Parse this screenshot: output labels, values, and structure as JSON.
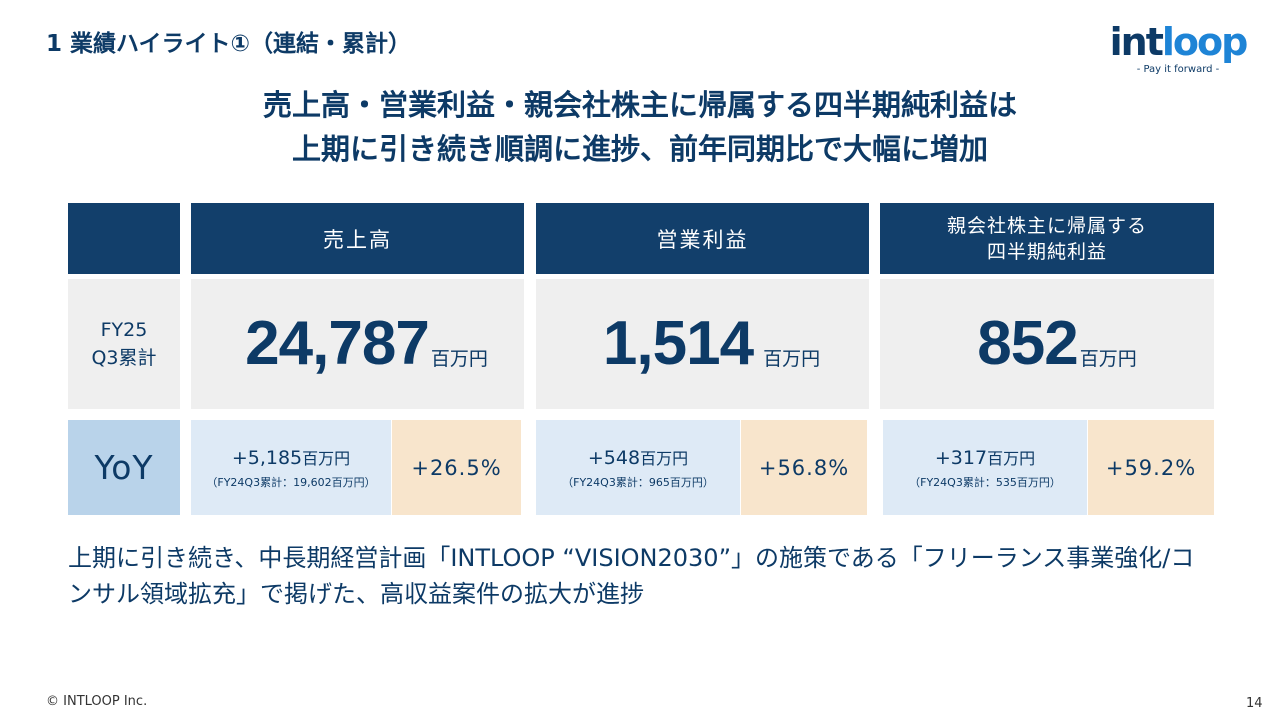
{
  "section_title": "1  業績ハイライト①（連結・累計）",
  "logo": {
    "word_a": "int",
    "word_b": "loop",
    "tagline": "- Pay it forward -"
  },
  "headline": {
    "line1": "売上高・営業利益・親会社株主に帰属する四半期純利益は",
    "line2": "上期に引き続き順調に進捗、前年同期比で大幅に増加"
  },
  "table": {
    "row_label": {
      "line1": "FY25",
      "line2": "Q3累計"
    },
    "yoy_label": "YoY",
    "unit": "百万円",
    "columns": [
      {
        "header": "売上高",
        "value": "24,787",
        "diff": "+5,185",
        "prev": "（FY24Q3累計：19,602百万円）",
        "pct": "+26.5%"
      },
      {
        "header": "営業利益",
        "value": "1,514",
        "diff": "+548",
        "prev": "（FY24Q3累計：965百万円）",
        "pct": "+56.8%"
      },
      {
        "header_line1": "親会社株主に帰属する",
        "header_line2": "四半期純利益",
        "value": "852",
        "diff": "+317",
        "prev": "（FY24Q3累計：535百万円）",
        "pct": "+59.2%"
      }
    ]
  },
  "body_text": "上期に引き続き、中長期経営計画「INTLOOP “VISION2030”」の施策である「フリーランス事業強化/コンサル領域拡充」で掲げた、高収益案件の拡大が進捗",
  "footer": "© INTLOOP  Inc.",
  "page_number": "14"
}
